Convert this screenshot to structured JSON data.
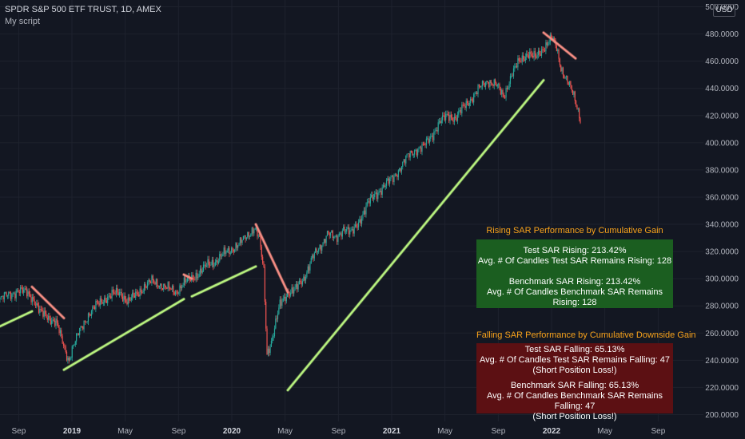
{
  "header": {
    "title": "SPDR S&P 500 ETF TRUST, 1D, AMEX",
    "subtitle": "My script",
    "currency": "USD"
  },
  "colors": {
    "background": "#131722",
    "grid": "#1e222d",
    "candle_up": "#26a69a",
    "candle_down": "#ef5350",
    "sar_rising": "#b7f07e",
    "sar_falling": "#f28b82",
    "panel_green": "#1b5e20",
    "panel_red": "#5c1013",
    "panel_title": "#f7a21b"
  },
  "rising_panel": {
    "title": "Rising SAR Performance by Cumulative Gain",
    "lines": [
      "Test SAR Rising: 213.42%",
      "Avg. # Of Candles Test SAR Remains Rising: 128",
      "",
      "Benchmark SAR Rising: 213.42%",
      "Avg. # Of Candles Benchmark SAR Remains Rising: 128"
    ]
  },
  "falling_panel": {
    "title": "Falling SAR Performance by Cumulative Downside Gain",
    "lines": [
      "Test SAR Falling: 65.13%",
      "Avg. # Of Candles Test SAR Remains Falling: 47",
      "(Short Position Loss!)",
      "",
      "Benchmark SAR Falling: 65.13%",
      "Avg. # Of Candles Benchmark SAR Remains Falling: 47",
      "(Short Position Loss!)"
    ]
  },
  "chart_data": {
    "type": "line",
    "title": "SPDR S&P 500 ETF TRUST, 1D, AMEX",
    "y_ticks": [
      "200.0000",
      "220.0000",
      "240.0000",
      "260.0000",
      "280.0000",
      "300.0000",
      "320.0000",
      "340.0000",
      "360.0000",
      "380.0000",
      "400.0000",
      "420.0000",
      "440.0000",
      "460.0000",
      "480.0000",
      "500.0000"
    ],
    "ylim": [
      195,
      505
    ],
    "x_ticks": [
      {
        "label": "Sep",
        "bold": false
      },
      {
        "label": "2019",
        "bold": true
      },
      {
        "label": "May",
        "bold": false
      },
      {
        "label": "Sep",
        "bold": false
      },
      {
        "label": "2020",
        "bold": true
      },
      {
        "label": "May",
        "bold": false
      },
      {
        "label": "Sep",
        "bold": false
      },
      {
        "label": "2021",
        "bold": true
      },
      {
        "label": "May",
        "bold": false
      },
      {
        "label": "Sep",
        "bold": false
      },
      {
        "label": "2022",
        "bold": true
      },
      {
        "label": "May",
        "bold": false
      },
      {
        "label": "Sep",
        "bold": false
      }
    ],
    "x_tick_dates": [
      2018.667,
      2019.0,
      2019.333,
      2019.667,
      2020.0,
      2020.333,
      2020.667,
      2021.0,
      2021.333,
      2021.667,
      2022.0,
      2022.333,
      2022.667
    ],
    "xlim": [
      2018.55,
      2022.95
    ],
    "price_series": {
      "name": "",
      "x": [
        2018.55,
        2018.6,
        2018.66,
        2018.72,
        2018.76,
        2018.8,
        2018.85,
        2018.9,
        2018.95,
        2018.98,
        2019.0,
        2019.05,
        2019.1,
        2019.15,
        2019.2,
        2019.25,
        2019.3,
        2019.35,
        2019.4,
        2019.45,
        2019.5,
        2019.55,
        2019.6,
        2019.65,
        2019.7,
        2019.75,
        2019.8,
        2019.85,
        2019.9,
        2019.95,
        2020.0,
        2020.05,
        2020.1,
        2020.14,
        2020.17,
        2020.2,
        2020.22,
        2020.25,
        2020.3,
        2020.35,
        2020.4,
        2020.45,
        2020.5,
        2020.55,
        2020.6,
        2020.65,
        2020.7,
        2020.75,
        2020.8,
        2020.85,
        2020.9,
        2020.95,
        2021.0,
        2021.05,
        2021.1,
        2021.15,
        2021.2,
        2021.25,
        2021.3,
        2021.35,
        2021.4,
        2021.45,
        2021.5,
        2021.55,
        2021.6,
        2021.65,
        2021.7,
        2021.75,
        2021.8,
        2021.85,
        2021.9,
        2021.95,
        2022.0,
        2022.03,
        2022.06,
        2022.09,
        2022.12,
        2022.15,
        2022.18
      ],
      "y": [
        285,
        288,
        291,
        290,
        285,
        275,
        272,
        268,
        250,
        240,
        248,
        262,
        273,
        280,
        285,
        288,
        290,
        283,
        288,
        294,
        298,
        296,
        293,
        290,
        297,
        300,
        305,
        310,
        313,
        318,
        322,
        326,
        332,
        338,
        330,
        305,
        245,
        255,
        280,
        290,
        292,
        300,
        315,
        322,
        335,
        328,
        338,
        333,
        343,
        355,
        362,
        368,
        373,
        381,
        390,
        395,
        397,
        405,
        415,
        420,
        418,
        426,
        433,
        440,
        446,
        443,
        434,
        450,
        460,
        466,
        462,
        470,
        477,
        470,
        455,
        448,
        440,
        430,
        418
      ]
    },
    "sar_series": [
      {
        "trend": "rising",
        "x": [
          2018.55,
          2018.75
        ],
        "y": [
          265,
          276
        ]
      },
      {
        "trend": "falling",
        "x": [
          2018.75,
          2018.95
        ],
        "y": [
          294,
          271
        ]
      },
      {
        "trend": "rising",
        "x": [
          2018.95,
          2019.7
        ],
        "y": [
          233,
          285
        ]
      },
      {
        "trend": "falling",
        "x": [
          2019.7,
          2019.75
        ],
        "y": [
          303,
          300
        ]
      },
      {
        "trend": "rising",
        "x": [
          2019.75,
          2020.15
        ],
        "y": [
          287,
          309
        ]
      },
      {
        "trend": "falling",
        "x": [
          2020.15,
          2020.35
        ],
        "y": [
          340,
          290
        ]
      },
      {
        "trend": "rising",
        "x": [
          2020.35,
          2021.95
        ],
        "y": [
          218,
          446
        ]
      },
      {
        "trend": "falling",
        "x": [
          2021.95,
          2022.15
        ],
        "y": [
          481,
          462
        ]
      }
    ]
  }
}
